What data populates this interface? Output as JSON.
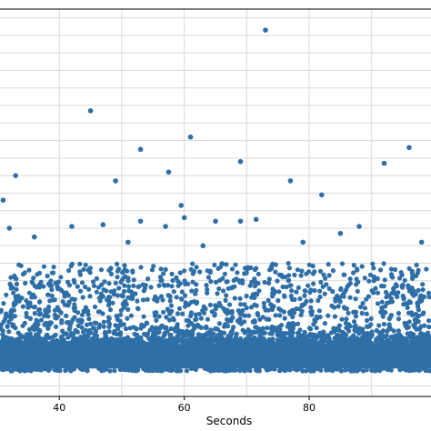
{
  "chart_data": {
    "type": "scatter",
    "xlabel": "Seconds",
    "ylabel": "",
    "title": "",
    "xlim": [
      30.5,
      99.5
    ],
    "ylim": [
      -0.16,
      2.05
    ],
    "x_ticks": [
      40,
      60,
      80
    ],
    "x_tick_labels": [
      "40",
      "60",
      "80"
    ],
    "grid": true,
    "series_color": "#2f6fa7",
    "notable_points": [
      {
        "x": 73.0,
        "y": 1.93
      },
      {
        "x": 45.0,
        "y": 1.47
      },
      {
        "x": 61.0,
        "y": 1.32
      },
      {
        "x": 53.0,
        "y": 1.25
      },
      {
        "x": 96.0,
        "y": 1.26
      },
      {
        "x": 69.0,
        "y": 1.18
      },
      {
        "x": 92.0,
        "y": 1.17
      },
      {
        "x": 33.0,
        "y": 1.1
      },
      {
        "x": 49.0,
        "y": 1.07
      },
      {
        "x": 57.5,
        "y": 1.12
      },
      {
        "x": 77.0,
        "y": 1.07
      },
      {
        "x": 31.0,
        "y": 0.96
      },
      {
        "x": 82.0,
        "y": 0.99
      },
      {
        "x": 59.5,
        "y": 0.93
      },
      {
        "x": 60.0,
        "y": 0.86
      },
      {
        "x": 65.0,
        "y": 0.84
      },
      {
        "x": 69.0,
        "y": 0.84
      },
      {
        "x": 71.5,
        "y": 0.85
      },
      {
        "x": 57.0,
        "y": 0.81
      },
      {
        "x": 88.0,
        "y": 0.81
      },
      {
        "x": 36.0,
        "y": 0.75
      },
      {
        "x": 42.0,
        "y": 0.81
      },
      {
        "x": 47.0,
        "y": 0.82
      },
      {
        "x": 53.0,
        "y": 0.84
      },
      {
        "x": 32.0,
        "y": 0.8
      },
      {
        "x": 85.0,
        "y": 0.77
      },
      {
        "x": 98.0,
        "y": 0.72
      },
      {
        "x": 63.0,
        "y": 0.7
      },
      {
        "x": 51.0,
        "y": 0.72
      },
      {
        "x": 79.0,
        "y": 0.72
      }
    ],
    "cluster": {
      "x_range": [
        30.5,
        99.5
      ],
      "dense_band_y": [
        0.0,
        0.14
      ],
      "sparse_band_y": [
        0.14,
        0.6
      ]
    }
  }
}
